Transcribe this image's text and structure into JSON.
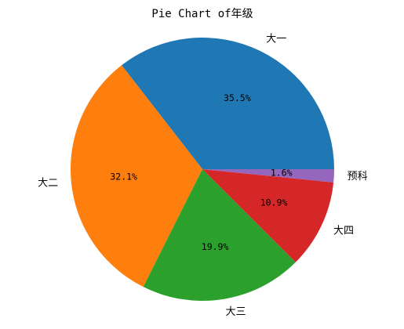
{
  "chart_data": {
    "type": "pie",
    "title": "Pie Chart of年级",
    "categories": [
      "大一",
      "大二",
      "大三",
      "大四",
      "预科"
    ],
    "values": [
      35.5,
      32.1,
      19.9,
      10.9,
      1.6
    ],
    "value_labels": [
      "35.5%",
      "32.1%",
      "19.9%",
      "10.9%",
      "1.6%"
    ],
    "colors": [
      "#1f77b4",
      "#ff7f0e",
      "#2ca02c",
      "#d62728",
      "#9467bd"
    ],
    "start_angle": "0 degrees (3 o'clock), counterclockwise",
    "legend": "none"
  }
}
